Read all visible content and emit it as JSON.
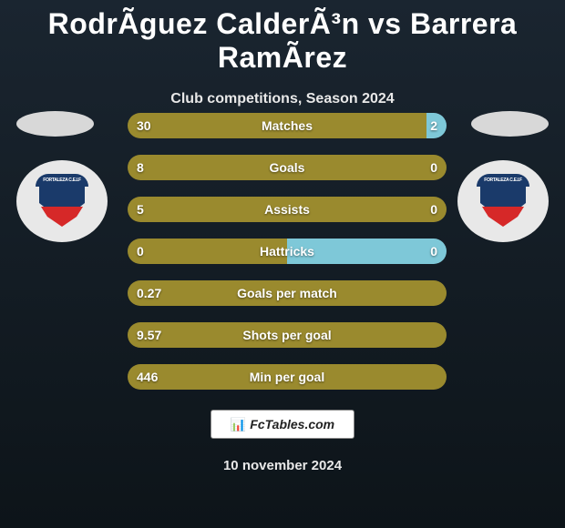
{
  "title": "RodrÃ­guez CalderÃ³n vs Barrera RamÃ­rez",
  "subtitle": "Club competitions, Season 2024",
  "footer_brand": "FcTables.com",
  "footer_date": "10 november 2024",
  "colors": {
    "background_top": "#1a2530",
    "background_bottom": "#0d1419",
    "bar_left": "#9a8a2e",
    "bar_right": "#7ec8d8",
    "text": "#ffffff",
    "logo_bg": "#e8e8e8",
    "shield_blue": "#1a3a6a",
    "shield_red": "#d62828"
  },
  "stats": [
    {
      "label": "Matches",
      "left_val": "30",
      "right_val": "2",
      "left_pct": 93.75,
      "right_pct": 6.25
    },
    {
      "label": "Goals",
      "left_val": "8",
      "right_val": "0",
      "left_pct": 100,
      "right_pct": 0
    },
    {
      "label": "Assists",
      "left_val": "5",
      "right_val": "0",
      "left_pct": 100,
      "right_pct": 0
    },
    {
      "label": "Hattricks",
      "left_val": "0",
      "right_val": "0",
      "left_pct": 50,
      "right_pct": 50
    },
    {
      "label": "Goals per match",
      "left_val": "0.27",
      "right_val": "",
      "left_pct": 100,
      "right_pct": 0
    },
    {
      "label": "Shots per goal",
      "left_val": "9.57",
      "right_val": "",
      "left_pct": 100,
      "right_pct": 0
    },
    {
      "label": "Min per goal",
      "left_val": "446",
      "right_val": "",
      "left_pct": 100,
      "right_pct": 0
    }
  ]
}
